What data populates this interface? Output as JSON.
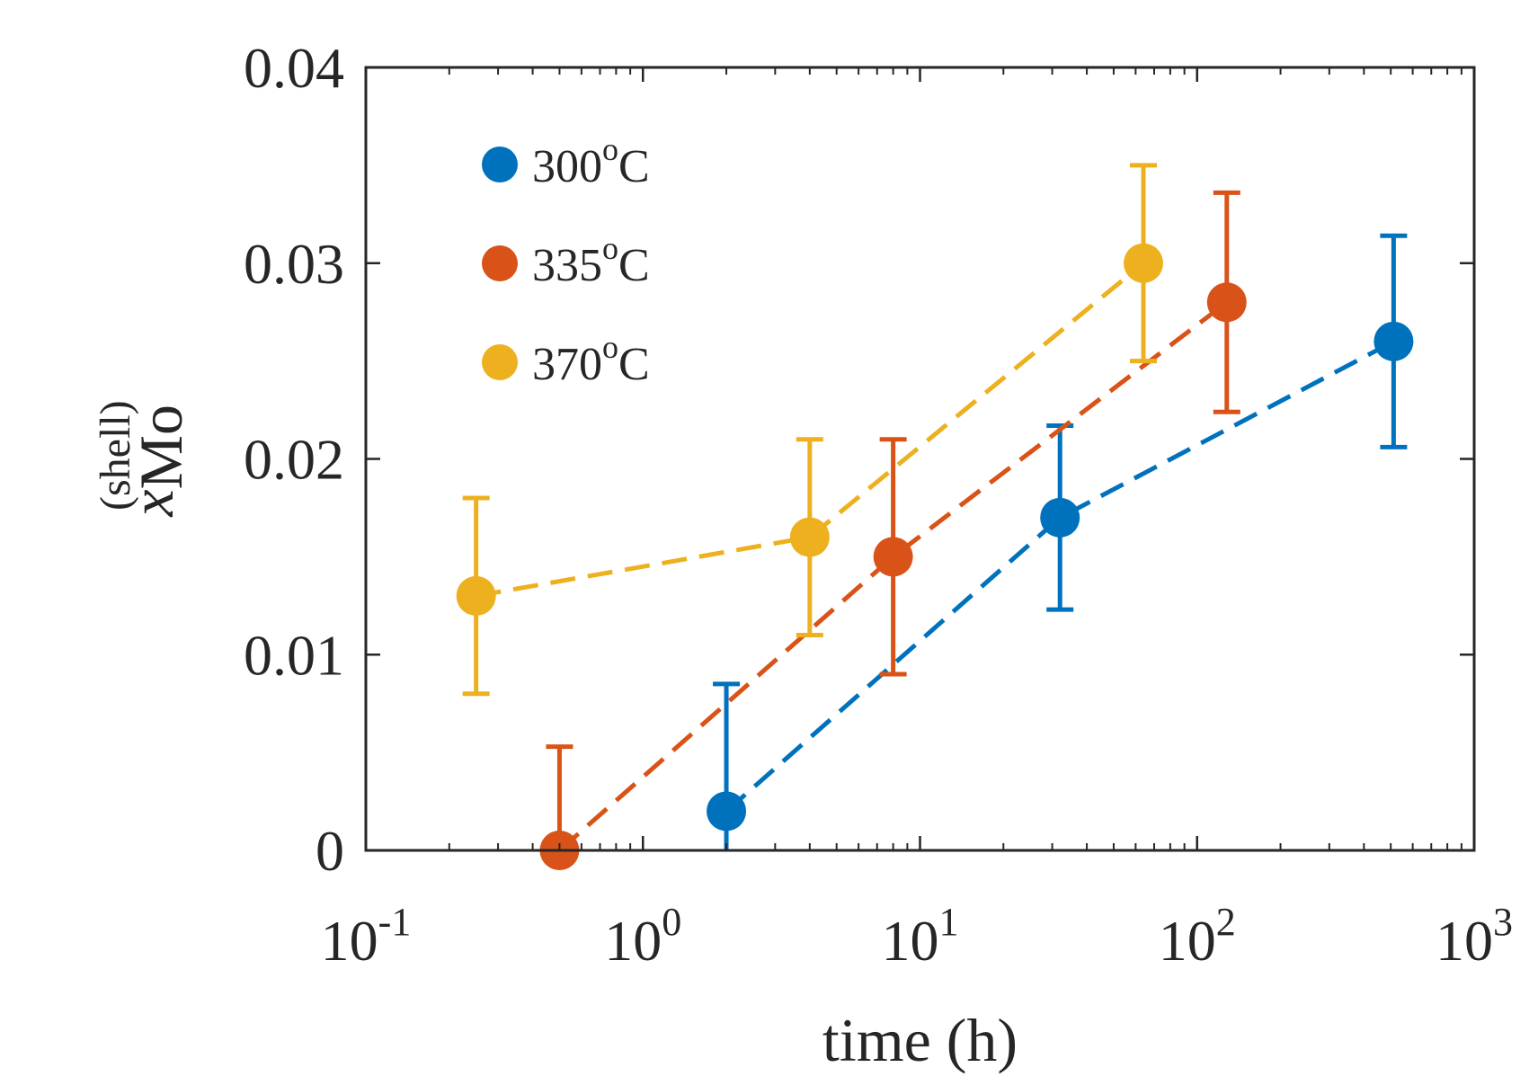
{
  "chart_data": {
    "type": "scatter",
    "title": "",
    "xlabel": "time (h)",
    "ylabel": {
      "base": "x",
      "subscript": "Mo",
      "superscript": "(shell)"
    },
    "x_scale": "log",
    "xlim": [
      0.1,
      1000
    ],
    "ylim": [
      0,
      0.04
    ],
    "x_ticks": [
      {
        "value": 0.1,
        "base": "10",
        "exp": "-1"
      },
      {
        "value": 1,
        "base": "10",
        "exp": "0"
      },
      {
        "value": 10,
        "base": "10",
        "exp": "1"
      },
      {
        "value": 100,
        "base": "10",
        "exp": "2"
      },
      {
        "value": 1000,
        "base": "10",
        "exp": "3"
      }
    ],
    "y_ticks": [
      {
        "value": 0,
        "label": "0"
      },
      {
        "value": 0.01,
        "label": "0.01"
      },
      {
        "value": 0.02,
        "label": "0.02"
      },
      {
        "value": 0.03,
        "label": "0.03"
      },
      {
        "value": 0.04,
        "label": "0.04"
      }
    ],
    "grid": false,
    "legend_position": "top-left",
    "series": [
      {
        "name": "300",
        "unit_sup": "o",
        "unit": "C",
        "color": "#0072BD",
        "x": [
          2,
          32,
          512
        ],
        "y": [
          0.002,
          0.017,
          0.026
        ],
        "err": [
          0.0065,
          0.0047,
          0.0054
        ]
      },
      {
        "name": "335",
        "unit_sup": "o",
        "unit": "C",
        "color": "#D95319",
        "x": [
          0.5,
          8,
          128
        ],
        "y": [
          0.0,
          0.015,
          0.028
        ],
        "err": [
          0.0053,
          0.006,
          0.0056
        ]
      },
      {
        "name": "370",
        "unit_sup": "o",
        "unit": "C",
        "color": "#EDB120",
        "x": [
          0.25,
          4,
          64
        ],
        "y": [
          0.013,
          0.016,
          0.03
        ],
        "err": [
          0.005,
          0.005,
          0.005
        ]
      }
    ]
  }
}
